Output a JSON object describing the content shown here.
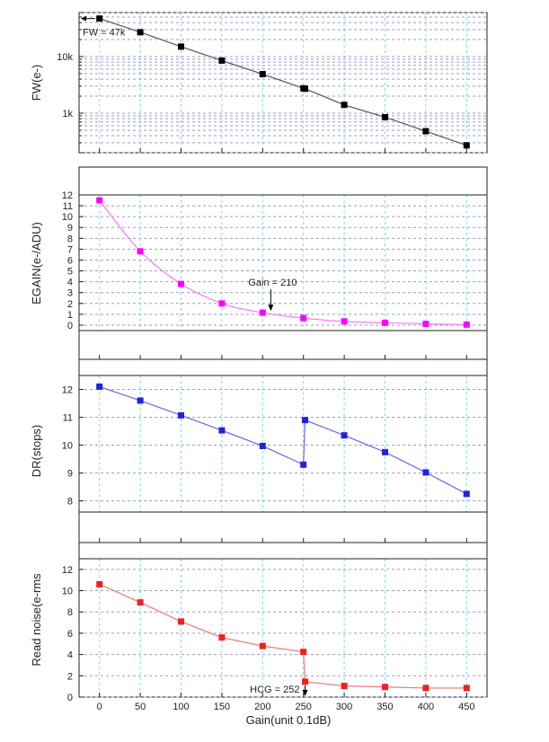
{
  "figure_xlabel": "Gain(unit 0.1dB)",
  "colors": {
    "grid_vertical": "#7fd8ee",
    "grid_horizontal": "#9a9ad8",
    "frame": "#222222"
  },
  "chart_data": [
    {
      "id": "fw",
      "type": "line",
      "yscale": "log",
      "ylabel": "FW(e-)",
      "ylim": [
        200,
        60000
      ],
      "yticks": [
        1000,
        10000
      ],
      "ytick_labels": [
        "1k",
        "10k"
      ],
      "xlim": [
        -25,
        475
      ],
      "xticks": [
        0,
        50,
        100,
        150,
        200,
        250,
        300,
        350,
        400,
        450
      ],
      "grid": true,
      "series": [
        {
          "name": "FW",
          "color": "#000000",
          "line_color": "#555555",
          "x": [
            0,
            50,
            100,
            150,
            200,
            250,
            252,
            300,
            350,
            400,
            450
          ],
          "y": [
            47000,
            27000,
            15000,
            8500,
            4900,
            2750,
            2700,
            1400,
            850,
            480,
            270
          ]
        }
      ],
      "annotation": {
        "text": "FW = 47k",
        "x": 0,
        "y": 47000
      }
    },
    {
      "id": "egain",
      "type": "line",
      "yscale": "linear",
      "ylabel": "EGAIN(e-/ADU)",
      "ylim": [
        -0.5,
        12
      ],
      "yticks": [
        0,
        1,
        2,
        3,
        4,
        5,
        6,
        7,
        8,
        9,
        10,
        11,
        12
      ],
      "xlim": [
        -25,
        475
      ],
      "xticks": [
        0,
        50,
        100,
        150,
        200,
        250,
        300,
        350,
        400,
        450
      ],
      "grid": true,
      "series": [
        {
          "name": "EGAIN",
          "color": "#ff00ff",
          "line_color": "#ff77ff",
          "x": [
            0,
            50,
            100,
            150,
            200,
            250,
            300,
            350,
            400,
            450
          ],
          "y": [
            11.5,
            6.8,
            3.8,
            2.0,
            1.15,
            0.65,
            0.35,
            0.22,
            0.12,
            0.05
          ]
        }
      ],
      "annotation": {
        "text": "Gain = 210",
        "x": 210,
        "y": 1.15
      }
    },
    {
      "id": "dr",
      "type": "line",
      "yscale": "linear",
      "ylabel": "DR(stops)",
      "ylim": [
        7.6,
        12.5
      ],
      "yticks": [
        8,
        9,
        10,
        11,
        12
      ],
      "xlim": [
        -25,
        475
      ],
      "xticks": [
        0,
        50,
        100,
        150,
        200,
        250,
        300,
        350,
        400,
        450
      ],
      "grid": true,
      "series": [
        {
          "name": "DR",
          "color": "#2222dd",
          "line_color": "#6666ee",
          "x": [
            0,
            50,
            100,
            150,
            200,
            250,
            252,
            300,
            350,
            400,
            450
          ],
          "y": [
            12.1,
            11.6,
            11.07,
            10.53,
            9.97,
            9.3,
            10.9,
            10.35,
            9.75,
            9.02,
            8.25
          ]
        }
      ]
    },
    {
      "id": "rn",
      "type": "line",
      "yscale": "linear",
      "ylabel": "Read noise(e-rms",
      "ylim": [
        0,
        13
      ],
      "yticks": [
        0,
        2,
        4,
        6,
        8,
        10,
        12
      ],
      "xlim": [
        -25,
        475
      ],
      "xticks": [
        0,
        50,
        100,
        150,
        200,
        250,
        300,
        350,
        400,
        450
      ],
      "xlabel": "Gain(unit 0.1dB)",
      "grid": true,
      "series": [
        {
          "name": "Read noise",
          "color": "#ee2222",
          "line_color": "#f27777",
          "x": [
            0,
            50,
            100,
            150,
            200,
            250,
            252,
            300,
            350,
            400,
            450
          ],
          "y": [
            10.6,
            8.9,
            7.1,
            5.6,
            4.8,
            4.25,
            1.45,
            1.05,
            0.95,
            0.85,
            0.85
          ]
        }
      ],
      "annotation": {
        "text": "HCG = 252",
        "x": 252,
        "y": 1.45
      }
    }
  ]
}
